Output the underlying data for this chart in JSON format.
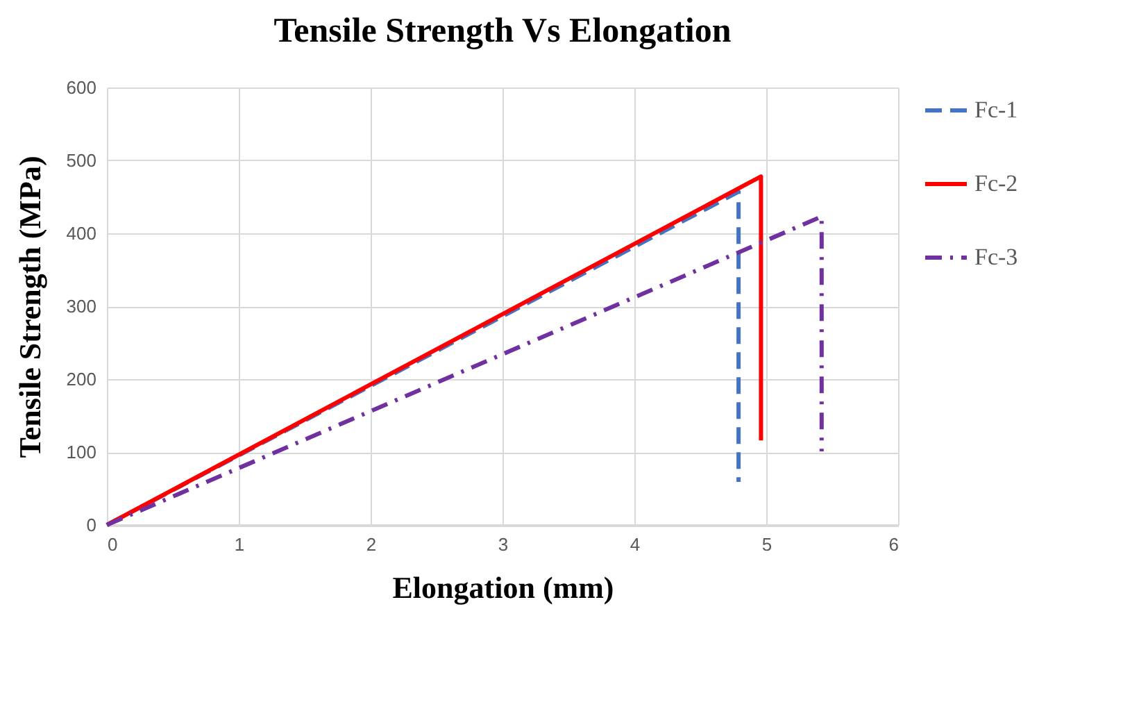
{
  "chart_data": {
    "type": "line",
    "title": "Tensile Strength Vs Elongation",
    "xlabel": "Elongation (mm)",
    "ylabel": "Tensile Strength (MPa)",
    "xlim": [
      0,
      6
    ],
    "xticks": [
      0,
      1,
      2,
      3,
      4,
      5,
      6
    ],
    "ylim": [
      0,
      600
    ],
    "yticks": [
      0,
      100,
      200,
      300,
      400,
      500,
      600
    ],
    "grid": true,
    "legend": "right",
    "marker": "none",
    "series": [
      {
        "name": "Fc-1",
        "color": "#4472c4",
        "line_style": "dashed",
        "x": [
          0,
          4.79,
          4.79
        ],
        "values": [
          0,
          457,
          59
        ]
      },
      {
        "name": "Fc-2",
        "color": "#ff0000",
        "line_style": "solid",
        "x": [
          0,
          4.96,
          4.96
        ],
        "values": [
          0,
          478,
          116
        ]
      },
      {
        "name": "Fc-3",
        "color": "#7030a0",
        "line_style": "dashdot",
        "x": [
          0,
          5.42,
          5.42
        ],
        "values": [
          0,
          423,
          101
        ]
      }
    ]
  }
}
